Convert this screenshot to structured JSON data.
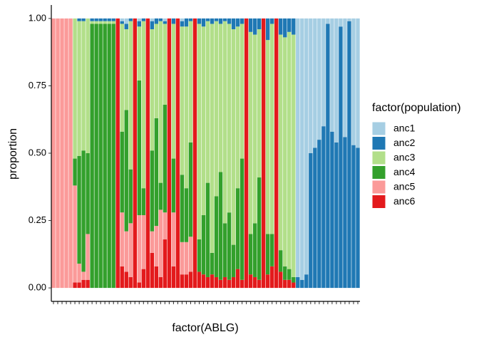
{
  "chart_data": {
    "type": "stacked_bar",
    "x_label": "factor(ABLG)",
    "y_label": "proportion",
    "legend_title": "factor(population)",
    "legend": "right",
    "categories": [
      null,
      null,
      null,
      null,
      null,
      null,
      null,
      null,
      null,
      null,
      null,
      null,
      null,
      null,
      null,
      null,
      null,
      null,
      null,
      null,
      null,
      null,
      null,
      null,
      null,
      null,
      null,
      null,
      null,
      null,
      null,
      null,
      null,
      null,
      null,
      null,
      null,
      null,
      null,
      null,
      null,
      null,
      null,
      null,
      null,
      null,
      null,
      null,
      null,
      null,
      null,
      null,
      null,
      null,
      null,
      null,
      null,
      null,
      null,
      null,
      null,
      null,
      null,
      null,
      null,
      null,
      null,
      null,
      null,
      null,
      null,
      null
    ],
    "ylim": [
      -0.05,
      1.05
    ],
    "yticks": [
      {
        "value": 0,
        "label": "0.00"
      },
      {
        "value": 0.25,
        "label": "0.25"
      },
      {
        "value": 0.5,
        "label": "0.50"
      },
      {
        "value": 0.75,
        "label": "0.75"
      },
      {
        "value": 1,
        "label": "1.00"
      }
    ],
    "series": [
      {
        "name": "anc1",
        "color": "#a6cee3",
        "values": [
          0,
          0,
          0,
          0,
          0,
          0,
          0,
          0,
          0,
          0,
          0,
          0,
          0,
          0,
          0,
          0,
          0.01,
          0.02,
          0,
          0,
          0.01,
          0,
          0,
          0.01,
          0,
          0,
          0.01,
          0,
          0,
          0,
          0.01,
          0,
          0,
          0,
          0,
          0,
          0,
          0,
          0,
          0,
          0,
          0,
          0,
          0,
          0,
          0,
          0,
          0,
          0,
          0,
          0,
          0,
          0,
          0,
          0,
          0,
          0,
          0.96,
          0.97,
          0.95,
          0.5,
          0.48,
          0.45,
          0.4,
          0.02,
          0.42,
          0.46,
          0.03,
          0.44,
          0.01,
          0.47,
          0.48
        ]
      },
      {
        "name": "anc2",
        "color": "#1f78b4",
        "values": [
          0,
          0,
          0,
          0,
          0,
          0,
          0.01,
          0.01,
          0,
          0.01,
          0.01,
          0.01,
          0.01,
          0.01,
          0.01,
          0,
          0.01,
          0.02,
          0.01,
          0,
          0.02,
          0.01,
          0,
          0.03,
          0.02,
          0.01,
          0.01,
          0,
          0.02,
          0,
          0.02,
          0.03,
          0.01,
          0,
          0.02,
          0.03,
          0.01,
          0.02,
          0.01,
          0.02,
          0.01,
          0.02,
          0.04,
          0.03,
          0.02,
          0,
          0.05,
          0.06,
          0.04,
          0,
          0.08,
          0.02,
          0,
          0.06,
          0.07,
          0.05,
          0.06,
          0.04,
          0.03,
          0.05,
          0.5,
          0.52,
          0.55,
          0.6,
          0.98,
          0.58,
          0.54,
          0.97,
          0.56,
          0.99,
          0.53,
          0.52
        ]
      },
      {
        "name": "anc3",
        "color": "#b2df8a",
        "values": [
          0,
          0,
          0,
          0,
          0,
          0.52,
          0.5,
          0.48,
          0.5,
          0.01,
          0.01,
          0.01,
          0.01,
          0.01,
          0.01,
          0,
          0.4,
          0.3,
          0.55,
          0,
          0.2,
          0.62,
          0,
          0.45,
          0.35,
          0.6,
          0.3,
          0,
          0.5,
          0,
          0.55,
          0.6,
          0.45,
          0,
          0.8,
          0.7,
          0.6,
          0.85,
          0.65,
          0.55,
          0.75,
          0.7,
          0.8,
          0.6,
          0.5,
          0,
          0.75,
          0.7,
          0.55,
          0,
          0.72,
          0.78,
          0,
          0.8,
          0.85,
          0.88,
          0.9,
          0,
          0,
          0,
          0,
          0,
          0,
          0,
          0,
          0,
          0,
          0,
          0,
          0,
          0,
          0
        ]
      },
      {
        "name": "anc4",
        "color": "#33a02c",
        "values": [
          0,
          0,
          0,
          0,
          0,
          0.1,
          0.4,
          0.45,
          0.3,
          0.98,
          0.98,
          0.98,
          0.98,
          0.98,
          0.98,
          0,
          0.3,
          0.45,
          0.2,
          0,
          0.5,
          0.1,
          0,
          0.3,
          0.4,
          0.1,
          0.4,
          0,
          0.2,
          0,
          0.25,
          0.2,
          0.35,
          0,
          0.12,
          0.22,
          0.35,
          0.08,
          0.3,
          0.4,
          0.2,
          0.25,
          0.12,
          0.3,
          0.45,
          0,
          0.15,
          0.2,
          0.38,
          0,
          0.15,
          0.12,
          0,
          0.08,
          0.05,
          0.04,
          0.02,
          0,
          0,
          0,
          0,
          0,
          0,
          0,
          0,
          0,
          0,
          0,
          0,
          0,
          0,
          0
        ]
      },
      {
        "name": "anc5",
        "color": "#fb9a99",
        "values": [
          1,
          1,
          1,
          1,
          1,
          0.36,
          0.07,
          0.03,
          0.17,
          0,
          0,
          0,
          0,
          0,
          0,
          0,
          0.2,
          0.15,
          0.2,
          0,
          0.25,
          0.2,
          0,
          0.08,
          0.15,
          0.25,
          0.1,
          0,
          0.2,
          0,
          0.12,
          0.12,
          0.13,
          0,
          0,
          0,
          0,
          0,
          0,
          0,
          0,
          0,
          0,
          0,
          0,
          0,
          0,
          0,
          0,
          0,
          0,
          0,
          0,
          0,
          0,
          0,
          0,
          0,
          0,
          0,
          0,
          0,
          0,
          0,
          0,
          0,
          0,
          0,
          0,
          0,
          0,
          0
        ]
      },
      {
        "name": "anc6",
        "color": "#e31a1c",
        "values": [
          0,
          0,
          0,
          0,
          0,
          0.02,
          0.02,
          0.03,
          0.03,
          0,
          0,
          0,
          0,
          0,
          0,
          1,
          0.08,
          0.06,
          0.04,
          1,
          0.02,
          0.07,
          1,
          0.13,
          0.08,
          0.04,
          0.18,
          1,
          0.08,
          1,
          0.05,
          0.05,
          0.06,
          1,
          0.06,
          0.05,
          0.04,
          0.05,
          0.04,
          0.03,
          0.04,
          0.03,
          0.04,
          0.07,
          0.03,
          1,
          0.05,
          0.04,
          0.03,
          1,
          0.05,
          0.08,
          1,
          0.06,
          0.03,
          0.03,
          0.02,
          0,
          0,
          0,
          0,
          0,
          0,
          0,
          0,
          0,
          0,
          0,
          0,
          0,
          0,
          0
        ]
      }
    ]
  }
}
